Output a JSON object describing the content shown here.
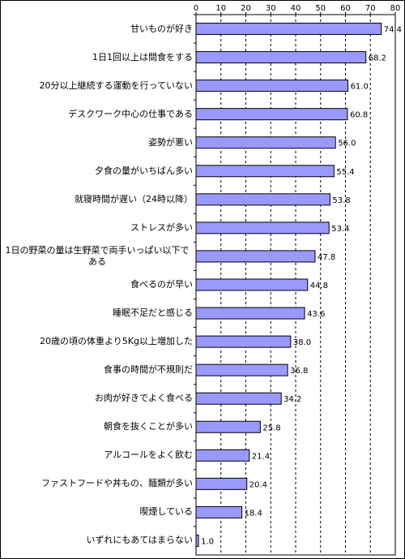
{
  "chart_data": {
    "type": "bar",
    "orientation": "horizontal",
    "categories": [
      "甘いものが好き",
      "1日1回以上は間食をする",
      "20分以上継続する運動を行っていない",
      "デスクワーク中心の仕事である",
      "姿勢が悪い",
      "夕食の量がいちばん多い",
      "就寝時間が遅い（24時以降）",
      "ストレスが多い",
      "1日の野菜の量は生野菜で両手いっぱい以下である",
      "食べるのが早い",
      "睡眠不足だと感じる",
      "20歳の頃の体重より5Kg以上増加した",
      "食事の時間が不規則だ",
      "お肉が好きでよく食べる",
      "朝食を抜くことが多い",
      "アルコールをよく飲む",
      "ファストフードや丼もの、麺類が多い",
      "喫煙している",
      "いずれにもあてはまらない"
    ],
    "values": [
      74.4,
      68.2,
      61.0,
      60.8,
      56.0,
      55.4,
      53.8,
      53.4,
      47.8,
      44.8,
      43.6,
      38.0,
      36.8,
      34.2,
      25.8,
      21.4,
      20.4,
      18.4,
      1.0
    ],
    "value_labels": [
      "74.4",
      "68.2",
      "61.0",
      "60.8",
      "56.0",
      "55.4",
      "53.8",
      "53.4",
      "47.8",
      "44.8",
      "43.6",
      "38.0",
      "36.8",
      "34.2",
      "25.8",
      "21.4",
      "20.4",
      "18.4",
      "1.0"
    ],
    "color": "#9999ff",
    "xlim": [
      0,
      80
    ],
    "xticks": [
      0,
      10,
      20,
      30,
      40,
      50,
      60,
      70,
      80
    ],
    "grid": true
  }
}
